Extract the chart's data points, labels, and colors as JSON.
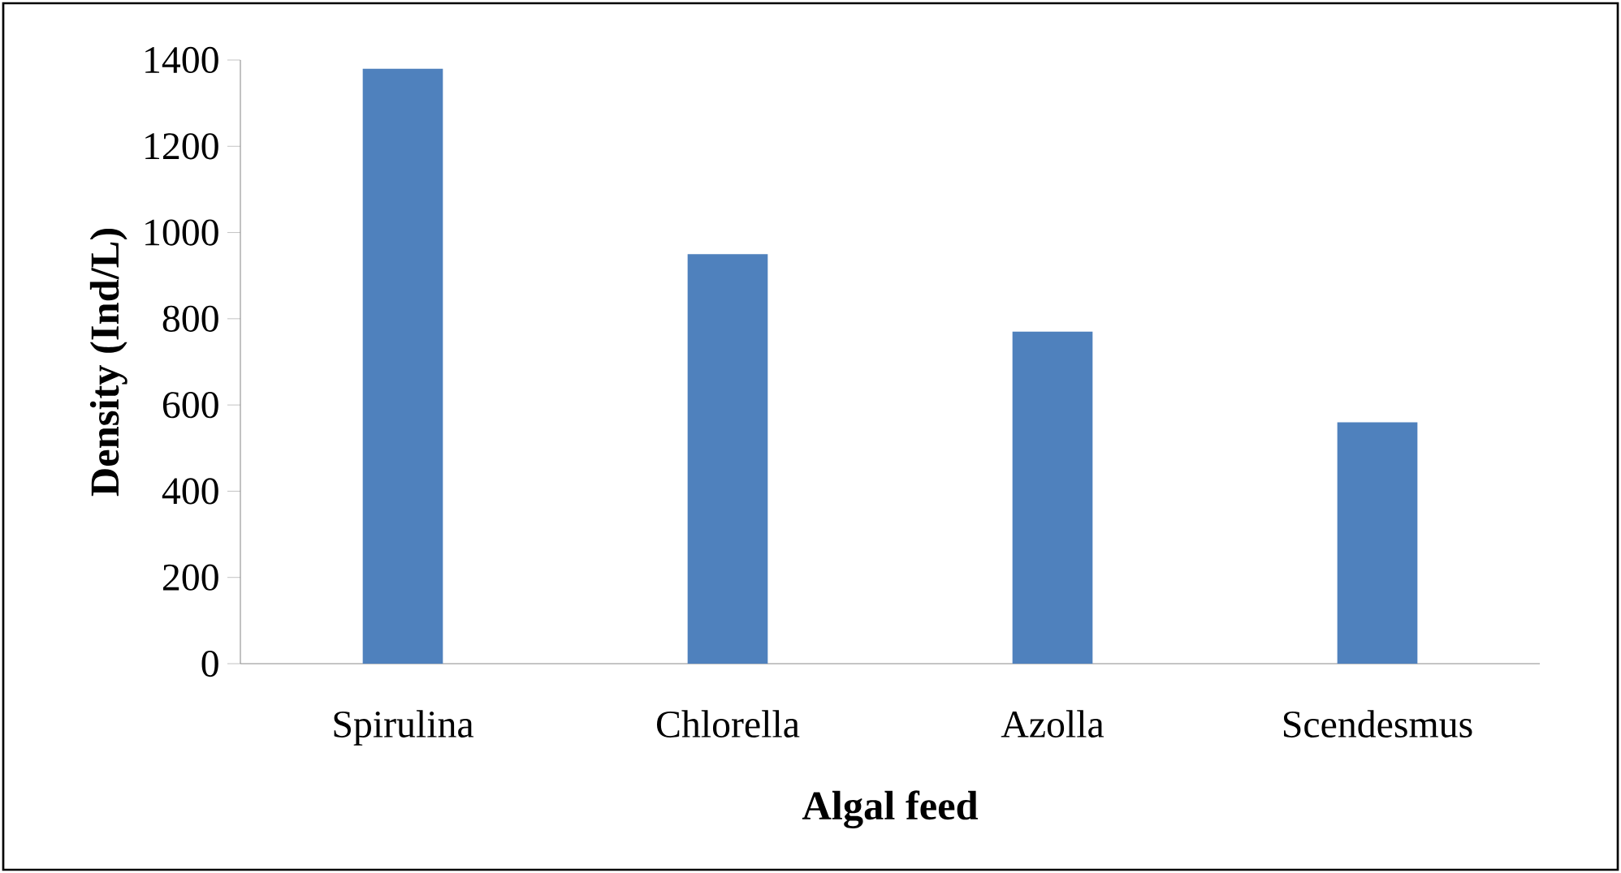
{
  "chart_data": {
    "type": "bar",
    "xlabel": "Algal feed",
    "ylabel": "Density (Ind/L)",
    "categories": [
      "Spirulina",
      "Chlorella",
      "Azolla",
      "Scendesmus"
    ],
    "values": [
      1380,
      950,
      770,
      560
    ],
    "color": "#4f81bd",
    "ylim": [
      0,
      1400
    ],
    "yticks": [
      0,
      200,
      400,
      600,
      800,
      1000,
      1200,
      1400
    ],
    "grid": false
  }
}
